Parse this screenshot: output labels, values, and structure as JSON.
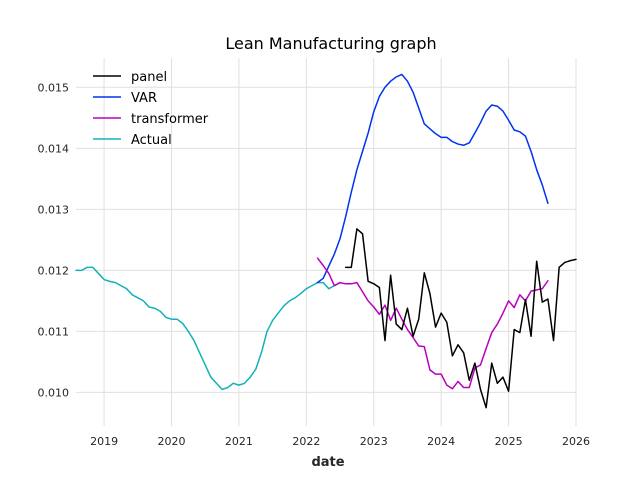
{
  "chart_data": {
    "type": "line",
    "title": "Lean Manufacturing graph",
    "xlabel": "date",
    "ylabel": "",
    "xlim": [
      "2018-08-01",
      "2026-01-01"
    ],
    "ylim": [
      0.00945,
      0.01548
    ],
    "x_ticks": [
      "2019",
      "2020",
      "2021",
      "2022",
      "2023",
      "2024",
      "2025",
      "2026"
    ],
    "y_ticks": [
      "0.010",
      "0.011",
      "0.012",
      "0.013",
      "0.014",
      "0.015"
    ],
    "grid": true,
    "legend_position": "top-left",
    "series": [
      {
        "name": "panel",
        "color": "#000000",
        "points": [
          [
            "2022-08",
            0.01205
          ],
          [
            "2022-09",
            0.01205
          ],
          [
            "2022-10",
            0.01268
          ],
          [
            "2022-11",
            0.0126
          ],
          [
            "2022-12",
            0.01182
          ],
          [
            "2023-01",
            0.01178
          ],
          [
            "2023-02",
            0.01172
          ],
          [
            "2023-03",
            0.01085
          ],
          [
            "2023-04",
            0.01192
          ],
          [
            "2023-05",
            0.01112
          ],
          [
            "2023-06",
            0.01103
          ],
          [
            "2023-07",
            0.01138
          ],
          [
            "2023-08",
            0.01092
          ],
          [
            "2023-09",
            0.0112
          ],
          [
            "2023-10",
            0.01196
          ],
          [
            "2023-11",
            0.01162
          ],
          [
            "2023-12",
            0.01107
          ],
          [
            "2024-01",
            0.0113
          ],
          [
            "2024-02",
            0.01115
          ],
          [
            "2024-03",
            0.0106
          ],
          [
            "2024-04",
            0.01078
          ],
          [
            "2024-05",
            0.01065
          ],
          [
            "2024-06",
            0.0102
          ],
          [
            "2024-07",
            0.01048
          ],
          [
            "2024-08",
            0.01005
          ],
          [
            "2024-09",
            0.00975
          ],
          [
            "2024-10",
            0.01048
          ],
          [
            "2024-11",
            0.01015
          ],
          [
            "2024-12",
            0.01025
          ],
          [
            "2025-01",
            0.01002
          ],
          [
            "2025-02",
            0.01103
          ],
          [
            "2025-03",
            0.01098
          ],
          [
            "2025-04",
            0.01152
          ],
          [
            "2025-05",
            0.01092
          ],
          [
            "2025-06",
            0.01215
          ],
          [
            "2025-07",
            0.01148
          ],
          [
            "2025-08",
            0.01153
          ],
          [
            "2025-09",
            0.01085
          ],
          [
            "2025-10",
            0.01205
          ],
          [
            "2025-11",
            0.01213
          ],
          [
            "2025-12",
            0.01216
          ],
          [
            "2026-01",
            0.01218
          ]
        ]
      },
      {
        "name": "VAR",
        "color": "#0033ee",
        "points": [
          [
            "2022-03",
            0.0118
          ],
          [
            "2022-04",
            0.01187
          ],
          [
            "2022-05",
            0.01207
          ],
          [
            "2022-06",
            0.01227
          ],
          [
            "2022-07",
            0.01252
          ],
          [
            "2022-08",
            0.01288
          ],
          [
            "2022-09",
            0.01328
          ],
          [
            "2022-10",
            0.01365
          ],
          [
            "2022-11",
            0.01395
          ],
          [
            "2022-12",
            0.01425
          ],
          [
            "2023-01",
            0.0146
          ],
          [
            "2023-02",
            0.01485
          ],
          [
            "2023-03",
            0.015
          ],
          [
            "2023-04",
            0.0151
          ],
          [
            "2023-05",
            0.01517
          ],
          [
            "2023-06",
            0.01521
          ],
          [
            "2023-07",
            0.0151
          ],
          [
            "2023-08",
            0.01492
          ],
          [
            "2023-09",
            0.01466
          ],
          [
            "2023-10",
            0.0144
          ],
          [
            "2023-11",
            0.01432
          ],
          [
            "2023-12",
            0.01424
          ],
          [
            "2024-01",
            0.01418
          ],
          [
            "2024-02",
            0.01418
          ],
          [
            "2024-03",
            0.01411
          ],
          [
            "2024-04",
            0.01407
          ],
          [
            "2024-05",
            0.01405
          ],
          [
            "2024-06",
            0.01409
          ],
          [
            "2024-07",
            0.01425
          ],
          [
            "2024-08",
            0.01442
          ],
          [
            "2024-09",
            0.01461
          ],
          [
            "2024-10",
            0.01471
          ],
          [
            "2024-11",
            0.01469
          ],
          [
            "2024-12",
            0.01461
          ],
          [
            "2025-01",
            0.01446
          ],
          [
            "2025-02",
            0.0143
          ],
          [
            "2025-03",
            0.01427
          ],
          [
            "2025-04",
            0.0142
          ],
          [
            "2025-05",
            0.01395
          ],
          [
            "2025-06",
            0.01365
          ],
          [
            "2025-07",
            0.0134
          ],
          [
            "2025-08",
            0.0131
          ]
        ]
      },
      {
        "name": "transformer",
        "color": "#bb00bb",
        "points": [
          [
            "2022-03",
            0.0122
          ],
          [
            "2022-04",
            0.01208
          ],
          [
            "2022-05",
            0.01195
          ],
          [
            "2022-06",
            0.01175
          ],
          [
            "2022-07",
            0.0118
          ],
          [
            "2022-08",
            0.01178
          ],
          [
            "2022-09",
            0.01178
          ],
          [
            "2022-10",
            0.0118
          ],
          [
            "2022-11",
            0.01165
          ],
          [
            "2022-12",
            0.0115
          ],
          [
            "2023-01",
            0.0114
          ],
          [
            "2023-02",
            0.01128
          ],
          [
            "2023-03",
            0.01143
          ],
          [
            "2023-04",
            0.01118
          ],
          [
            "2023-05",
            0.01138
          ],
          [
            "2023-06",
            0.0112
          ],
          [
            "2023-07",
            0.01103
          ],
          [
            "2023-08",
            0.0109
          ],
          [
            "2023-09",
            0.01076
          ],
          [
            "2023-10",
            0.01075
          ],
          [
            "2023-11",
            0.01037
          ],
          [
            "2023-12",
            0.0103
          ],
          [
            "2024-01",
            0.0103
          ],
          [
            "2024-02",
            0.01012
          ],
          [
            "2024-03",
            0.01006
          ],
          [
            "2024-04",
            0.01018
          ],
          [
            "2024-05",
            0.01008
          ],
          [
            "2024-06",
            0.01008
          ],
          [
            "2024-07",
            0.0104
          ],
          [
            "2024-08",
            0.01045
          ],
          [
            "2024-09",
            0.01072
          ],
          [
            "2024-10",
            0.01098
          ],
          [
            "2024-11",
            0.01112
          ],
          [
            "2024-12",
            0.0113
          ],
          [
            "2025-01",
            0.0115
          ],
          [
            "2025-02",
            0.01139
          ],
          [
            "2025-03",
            0.0116
          ],
          [
            "2025-04",
            0.0115
          ],
          [
            "2025-05",
            0.01166
          ],
          [
            "2025-06",
            0.01168
          ],
          [
            "2025-07",
            0.0117
          ],
          [
            "2025-08",
            0.01183
          ]
        ]
      },
      {
        "name": "Actual",
        "color": "#13b2b8",
        "points": [
          [
            "2018-08",
            0.012
          ],
          [
            "2018-09",
            0.012
          ],
          [
            "2018-10",
            0.01205
          ],
          [
            "2018-11",
            0.01205
          ],
          [
            "2018-12",
            0.01195
          ],
          [
            "2019-01",
            0.01185
          ],
          [
            "2019-02",
            0.01182
          ],
          [
            "2019-03",
            0.0118
          ],
          [
            "2019-04",
            0.01175
          ],
          [
            "2019-05",
            0.0117
          ],
          [
            "2019-06",
            0.0116
          ],
          [
            "2019-07",
            0.01155
          ],
          [
            "2019-08",
            0.0115
          ],
          [
            "2019-09",
            0.0114
          ],
          [
            "2019-10",
            0.01138
          ],
          [
            "2019-11",
            0.01133
          ],
          [
            "2019-12",
            0.01123
          ],
          [
            "2020-01",
            0.0112
          ],
          [
            "2020-02",
            0.0112
          ],
          [
            "2020-03",
            0.01113
          ],
          [
            "2020-04",
            0.011
          ],
          [
            "2020-05",
            0.01085
          ],
          [
            "2020-06",
            0.01065
          ],
          [
            "2020-07",
            0.01045
          ],
          [
            "2020-08",
            0.01025
          ],
          [
            "2020-09",
            0.01015
          ],
          [
            "2020-10",
            0.01005
          ],
          [
            "2020-11",
            0.01008
          ],
          [
            "2020-12",
            0.01015
          ],
          [
            "2021-01",
            0.01012
          ],
          [
            "2021-02",
            0.01015
          ],
          [
            "2021-03",
            0.01025
          ],
          [
            "2021-04",
            0.01038
          ],
          [
            "2021-05",
            0.01065
          ],
          [
            "2021-06",
            0.011
          ],
          [
            "2021-07",
            0.01118
          ],
          [
            "2021-08",
            0.0113
          ],
          [
            "2021-09",
            0.01142
          ],
          [
            "2021-10",
            0.0115
          ],
          [
            "2021-11",
            0.01155
          ],
          [
            "2021-12",
            0.01162
          ],
          [
            "2022-01",
            0.0117
          ],
          [
            "2022-02",
            0.01175
          ],
          [
            "2022-03",
            0.0118
          ],
          [
            "2022-04",
            0.0118
          ],
          [
            "2022-05",
            0.0117
          ],
          [
            "2022-06",
            0.01175
          ],
          [
            "2022-07",
            0.0118
          ]
        ]
      }
    ]
  }
}
